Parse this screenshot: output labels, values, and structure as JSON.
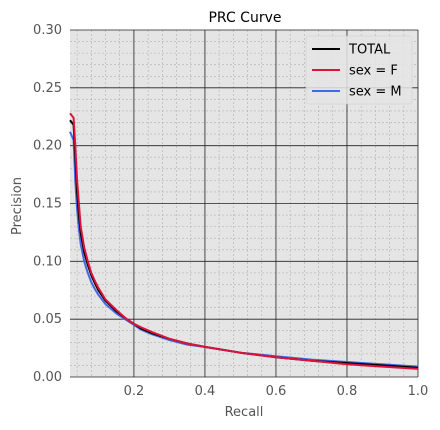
{
  "chart_data": {
    "type": "line",
    "title": "PRC Curve",
    "xlabel": "Recall",
    "ylabel": "Precision",
    "xlim": [
      0.02,
      1.0
    ],
    "ylim": [
      0.0,
      0.3
    ],
    "xticks": [
      0.2,
      0.4,
      0.6,
      0.8,
      1.0
    ],
    "xtick_labels": [
      "0.2",
      "0.4",
      "0.6",
      "0.8",
      "1.0"
    ],
    "yticks": [
      0.0,
      0.05,
      0.1,
      0.15,
      0.2,
      0.25,
      0.3
    ],
    "ytick_labels": [
      "0.00",
      "0.05",
      "0.10",
      "0.15",
      "0.20",
      "0.25",
      "0.30"
    ],
    "grid": true,
    "minor_grid": true,
    "legend_position": "top-right",
    "series": [
      {
        "name": "TOTAL",
        "color": "#000000",
        "x": [
          0.02,
          0.03,
          0.035,
          0.04,
          0.045,
          0.05,
          0.06,
          0.07,
          0.08,
          0.09,
          0.1,
          0.12,
          0.15,
          0.18,
          0.2,
          0.22,
          0.25,
          0.3,
          0.35,
          0.4,
          0.5,
          0.6,
          0.7,
          0.8,
          0.9,
          1.0
        ],
        "y": [
          0.222,
          0.218,
          0.19,
          0.16,
          0.14,
          0.125,
          0.108,
          0.097,
          0.088,
          0.081,
          0.075,
          0.066,
          0.057,
          0.05,
          0.046,
          0.042,
          0.038,
          0.033,
          0.029,
          0.026,
          0.021,
          0.017,
          0.014,
          0.012,
          0.01,
          0.008
        ]
      },
      {
        "name": "sex = F",
        "color": "#dc143c",
        "x": [
          0.02,
          0.03,
          0.035,
          0.04,
          0.045,
          0.05,
          0.06,
          0.07,
          0.08,
          0.09,
          0.1,
          0.12,
          0.15,
          0.18,
          0.2,
          0.22,
          0.25,
          0.3,
          0.35,
          0.4,
          0.5,
          0.6,
          0.7,
          0.8,
          0.9,
          1.0
        ],
        "y": [
          0.228,
          0.224,
          0.2,
          0.17,
          0.15,
          0.13,
          0.112,
          0.1,
          0.09,
          0.083,
          0.077,
          0.067,
          0.058,
          0.05,
          0.046,
          0.043,
          0.039,
          0.033,
          0.029,
          0.026,
          0.021,
          0.017,
          0.014,
          0.011,
          0.009,
          0.007
        ]
      },
      {
        "name": "sex = M",
        "color": "#4169e1",
        "x": [
          0.02,
          0.03,
          0.035,
          0.04,
          0.045,
          0.05,
          0.06,
          0.07,
          0.08,
          0.09,
          0.1,
          0.12,
          0.15,
          0.18,
          0.2,
          0.22,
          0.25,
          0.3,
          0.35,
          0.4,
          0.5,
          0.6,
          0.7,
          0.8,
          0.9,
          1.0
        ],
        "y": [
          0.212,
          0.205,
          0.17,
          0.145,
          0.128,
          0.115,
          0.1,
          0.09,
          0.082,
          0.076,
          0.071,
          0.063,
          0.055,
          0.049,
          0.045,
          0.041,
          0.037,
          0.032,
          0.028,
          0.026,
          0.021,
          0.018,
          0.015,
          0.013,
          0.011,
          0.009
        ]
      }
    ]
  }
}
